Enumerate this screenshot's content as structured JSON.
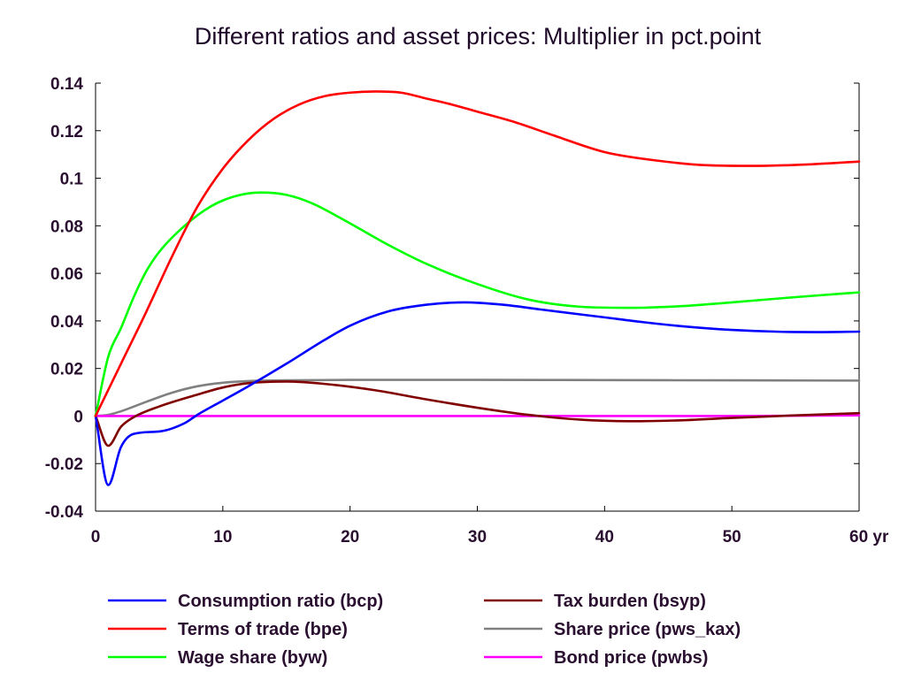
{
  "chart_data": {
    "type": "line",
    "title": "Different ratios and asset prices: Multiplier in pct.point",
    "xlabel": "",
    "ylabel": "",
    "xlim": [
      0,
      60
    ],
    "ylim": [
      -0.04,
      0.14
    ],
    "x_ticks": [
      0,
      10,
      20,
      30,
      40,
      50,
      60
    ],
    "x_tick_labels": [
      "0",
      "10",
      "20",
      "30",
      "40",
      "50",
      "60 yr"
    ],
    "y_ticks": [
      -0.04,
      -0.02,
      0,
      0.02,
      0.04,
      0.06,
      0.08,
      0.1,
      0.12,
      0.14
    ],
    "y_tick_labels": [
      "-0.04",
      "-0.02",
      "0",
      "0.02",
      "0.04",
      "0.06",
      "0.08",
      "0.1",
      "0.12",
      "0.14"
    ],
    "grid": false,
    "legend_position": "bottom",
    "series": [
      {
        "name": "Consumption ratio (bcp)",
        "color": "#0000ff",
        "points": [
          [
            0,
            0
          ],
          [
            1,
            -0.029
          ],
          [
            2,
            -0.013
          ],
          [
            3,
            -0.0075
          ],
          [
            5,
            -0.0065
          ],
          [
            7,
            -0.003
          ],
          [
            8,
            0.0005
          ],
          [
            10,
            0.0065
          ],
          [
            12,
            0.0125
          ],
          [
            15,
            0.022
          ],
          [
            18,
            0.032
          ],
          [
            20,
            0.038
          ],
          [
            23,
            0.044
          ],
          [
            26,
            0.0468
          ],
          [
            29,
            0.0478
          ],
          [
            32,
            0.0468
          ],
          [
            35,
            0.0448
          ],
          [
            38,
            0.0428
          ],
          [
            40,
            0.0415
          ],
          [
            43,
            0.0395
          ],
          [
            46,
            0.0378
          ],
          [
            50,
            0.0362
          ],
          [
            54,
            0.0354
          ],
          [
            57,
            0.0353
          ],
          [
            60,
            0.0355
          ]
        ]
      },
      {
        "name": "Terms of trade (bpe)",
        "color": "#ff0000",
        "points": [
          [
            0,
            0
          ],
          [
            2,
            0.022
          ],
          [
            4,
            0.044
          ],
          [
            6,
            0.067
          ],
          [
            8,
            0.088
          ],
          [
            10,
            0.104
          ],
          [
            12,
            0.116
          ],
          [
            14,
            0.125
          ],
          [
            16,
            0.131
          ],
          [
            18,
            0.1345
          ],
          [
            20,
            0.136
          ],
          [
            22,
            0.1365
          ],
          [
            24,
            0.136
          ],
          [
            26,
            0.1335
          ],
          [
            28,
            0.131
          ],
          [
            30,
            0.128
          ],
          [
            33,
            0.1235
          ],
          [
            36,
            0.118
          ],
          [
            40,
            0.111
          ],
          [
            44,
            0.1075
          ],
          [
            48,
            0.1055
          ],
          [
            52,
            0.1052
          ],
          [
            56,
            0.1058
          ],
          [
            60,
            0.107
          ]
        ]
      },
      {
        "name": "Wage share (byw)",
        "color": "#00ff00",
        "points": [
          [
            0,
            0
          ],
          [
            1,
            0.025
          ],
          [
            2,
            0.037
          ],
          [
            3,
            0.05
          ],
          [
            4,
            0.061
          ],
          [
            5,
            0.069
          ],
          [
            7,
            0.08
          ],
          [
            9,
            0.088
          ],
          [
            11,
            0.0925
          ],
          [
            13,
            0.094
          ],
          [
            15,
            0.093
          ],
          [
            17,
            0.0895
          ],
          [
            20,
            0.081
          ],
          [
            23,
            0.072
          ],
          [
            26,
            0.064
          ],
          [
            30,
            0.0555
          ],
          [
            34,
            0.049
          ],
          [
            38,
            0.046
          ],
          [
            42,
            0.0455
          ],
          [
            46,
            0.0462
          ],
          [
            50,
            0.0478
          ],
          [
            55,
            0.05
          ],
          [
            60,
            0.052
          ]
        ]
      },
      {
        "name": "Tax burden (bsyp)",
        "color": "#800000",
        "points": [
          [
            0,
            0
          ],
          [
            1,
            -0.0125
          ],
          [
            2,
            -0.0045
          ],
          [
            3,
            -0.0005
          ],
          [
            5,
            0.004
          ],
          [
            8,
            0.009
          ],
          [
            10,
            0.012
          ],
          [
            12,
            0.0138
          ],
          [
            15,
            0.0145
          ],
          [
            18,
            0.0135
          ],
          [
            22,
            0.0108
          ],
          [
            26,
            0.007
          ],
          [
            30,
            0.0035
          ],
          [
            34,
            0.0005
          ],
          [
            38,
            -0.0015
          ],
          [
            42,
            -0.0022
          ],
          [
            46,
            -0.0018
          ],
          [
            50,
            -0.0008
          ],
          [
            55,
            0.0003
          ],
          [
            60,
            0.0012
          ]
        ]
      },
      {
        "name": "Share price (pws_kax)",
        "color": "#808080",
        "points": [
          [
            0,
            0
          ],
          [
            1,
            0.0005
          ],
          [
            2,
            0.002
          ],
          [
            4,
            0.006
          ],
          [
            6,
            0.0098
          ],
          [
            8,
            0.0125
          ],
          [
            10,
            0.014
          ],
          [
            12,
            0.0147
          ],
          [
            15,
            0.015
          ],
          [
            20,
            0.0152
          ],
          [
            30,
            0.0152
          ],
          [
            40,
            0.0151
          ],
          [
            50,
            0.015
          ],
          [
            60,
            0.0149
          ]
        ]
      },
      {
        "name": "Bond price (pwbs)",
        "color": "#ff00ff",
        "points": [
          [
            0,
            0
          ],
          [
            10,
            0
          ],
          [
            20,
            0
          ],
          [
            30,
            0
          ],
          [
            40,
            0
          ],
          [
            50,
            0
          ],
          [
            60,
            0.0003
          ]
        ]
      }
    ]
  }
}
